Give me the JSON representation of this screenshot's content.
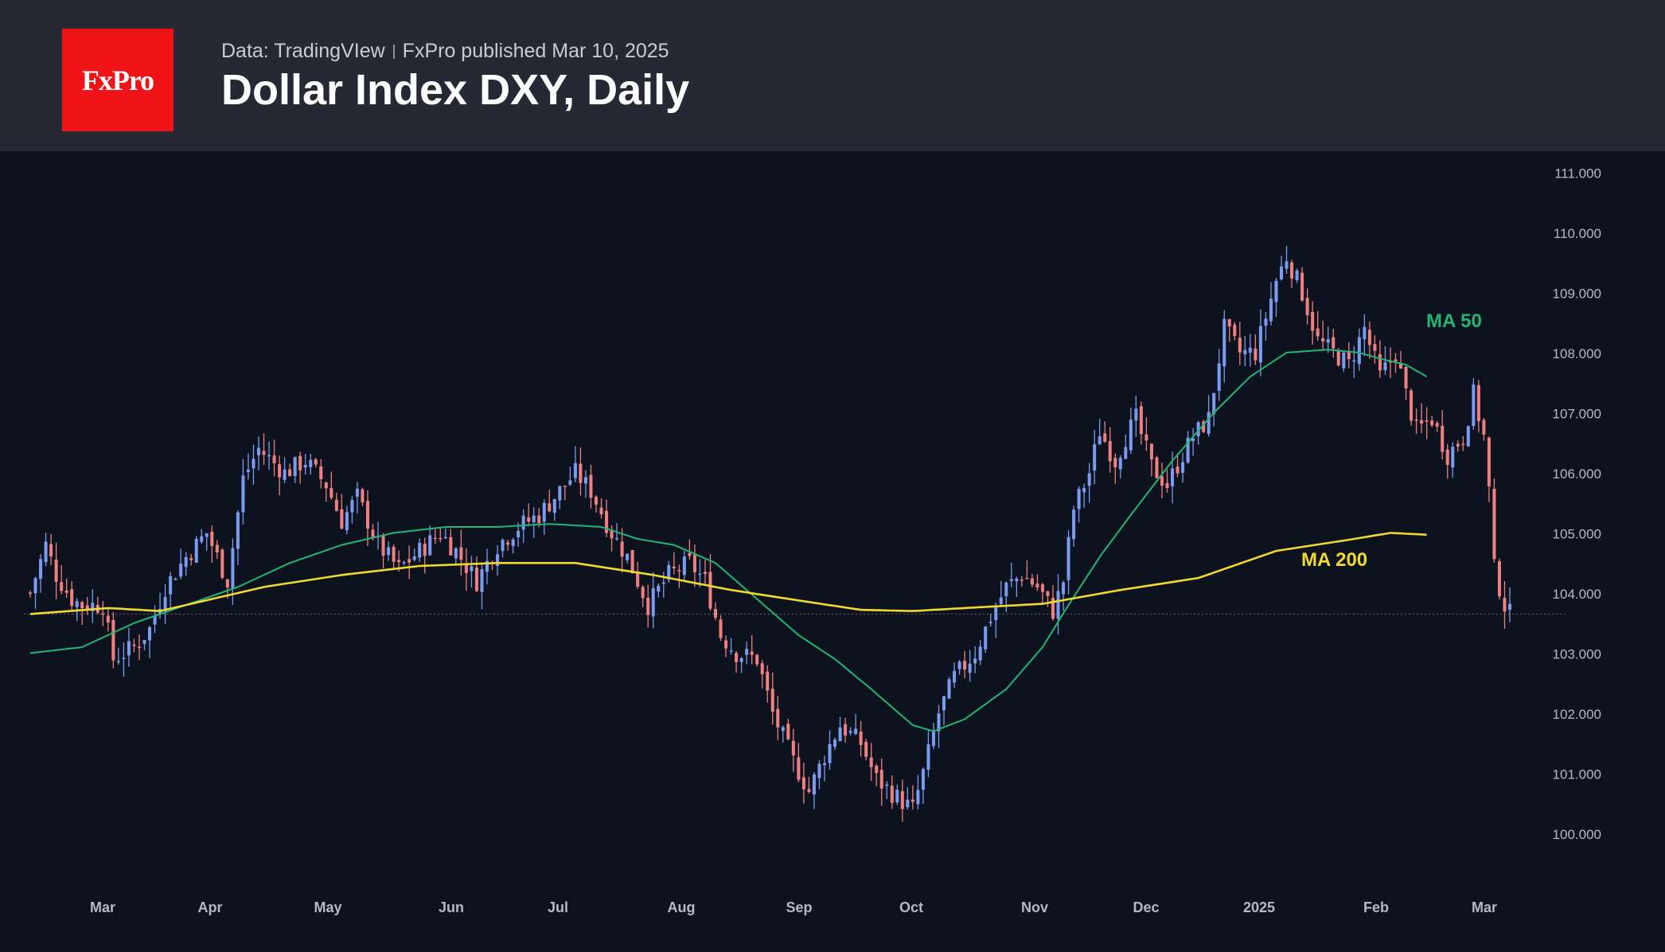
{
  "header": {
    "logo_text": "FxPro",
    "source": "Data: TradingVIew",
    "published": "FxPro published Mar 10, 2025",
    "title": "Dollar Index DXY, Daily"
  },
  "colors": {
    "background": "#0d121f",
    "header_bg": "#262933",
    "logo_bg": "#f01418",
    "up_candle": "#7a9cf0",
    "down_candle": "#f08080",
    "ma50": "#22b573",
    "ma200": "#f1d931",
    "axis_text": "#b5b9c2"
  },
  "chart_data": {
    "type": "candlestick",
    "title": "Dollar Index DXY, Daily",
    "y_ticks": [
      "111.000",
      "110.000",
      "109.000",
      "108.000",
      "107.000",
      "106.000",
      "105.000",
      "104.000",
      "103.000",
      "102.000",
      "101.000",
      "100.000"
    ],
    "x_ticks": [
      "Mar",
      "Apr",
      "May",
      "Jun",
      "Jul",
      "Aug",
      "Sep",
      "Oct",
      "Nov",
      "Dec",
      "2025",
      "Feb",
      "Mar"
    ],
    "ylim": [
      99.5,
      111.3
    ],
    "last_price_line": 103.65,
    "candle_anchors": [
      [
        0,
        104.0
      ],
      [
        3,
        104.8
      ],
      [
        5,
        104.3
      ],
      [
        8,
        103.9
      ],
      [
        10,
        103.8
      ],
      [
        14,
        103.8
      ],
      [
        16,
        102.9
      ],
      [
        20,
        103.1
      ],
      [
        23,
        103.4
      ],
      [
        26,
        104.1
      ],
      [
        30,
        104.6
      ],
      [
        34,
        105.0
      ],
      [
        38,
        104.2
      ],
      [
        41,
        105.9
      ],
      [
        44,
        106.4
      ],
      [
        49,
        106.0
      ],
      [
        53,
        106.2
      ],
      [
        57,
        105.8
      ],
      [
        60,
        105.2
      ],
      [
        63,
        105.6
      ],
      [
        67,
        104.8
      ],
      [
        71,
        104.4
      ],
      [
        75,
        104.7
      ],
      [
        79,
        105.0
      ],
      [
        82,
        104.7
      ],
      [
        86,
        104.2
      ],
      [
        90,
        104.8
      ],
      [
        94,
        105.1
      ],
      [
        98,
        105.3
      ],
      [
        102,
        105.7
      ],
      [
        105,
        106.0
      ],
      [
        108,
        105.7
      ],
      [
        112,
        105.0
      ],
      [
        115,
        104.6
      ],
      [
        119,
        103.8
      ],
      [
        123,
        104.3
      ],
      [
        127,
        104.5
      ],
      [
        130,
        104.2
      ],
      [
        133,
        103.3
      ],
      [
        136,
        103.0
      ],
      [
        140,
        102.9
      ],
      [
        143,
        102.0
      ],
      [
        147,
        101.2
      ],
      [
        150,
        100.7
      ],
      [
        153,
        101.3
      ],
      [
        156,
        101.8
      ],
      [
        160,
        101.5
      ],
      [
        163,
        100.9
      ],
      [
        167,
        100.6
      ],
      [
        170,
        100.4
      ],
      [
        172,
        101.0
      ],
      [
        175,
        102.0
      ],
      [
        178,
        102.6
      ],
      [
        182,
        103.0
      ],
      [
        185,
        103.6
      ],
      [
        188,
        104.1
      ],
      [
        191,
        104.3
      ],
      [
        194,
        104.1
      ],
      [
        197,
        103.7
      ],
      [
        199,
        104.2
      ],
      [
        201,
        105.4
      ],
      [
        204,
        106.0
      ],
      [
        206,
        106.7
      ],
      [
        209,
        106.2
      ],
      [
        211,
        106.6
      ],
      [
        213,
        106.9
      ],
      [
        216,
        106.1
      ],
      [
        219,
        105.8
      ],
      [
        222,
        106.3
      ],
      [
        224,
        106.6
      ],
      [
        227,
        106.9
      ],
      [
        230,
        108.4
      ],
      [
        233,
        108.0
      ],
      [
        236,
        108.0
      ],
      [
        238,
        108.6
      ],
      [
        240,
        109.2
      ],
      [
        242,
        109.6
      ],
      [
        245,
        109.0
      ],
      [
        248,
        108.2
      ],
      [
        251,
        108.0
      ],
      [
        254,
        107.8
      ],
      [
        257,
        108.4
      ],
      [
        260,
        107.6
      ],
      [
        263,
        108.0
      ],
      [
        265,
        107.3
      ],
      [
        267,
        106.7
      ],
      [
        270,
        106.9
      ],
      [
        273,
        106.3
      ],
      [
        276,
        106.6
      ],
      [
        278,
        107.3
      ],
      [
        280,
        106.6
      ],
      [
        281,
        105.7
      ],
      [
        282,
        104.4
      ],
      [
        283,
        104.1
      ],
      [
        284,
        103.8
      ],
      [
        285,
        103.65
      ]
    ],
    "candle_count": 286,
    "series": [
      {
        "name": "MA 50",
        "anchors": [
          [
            0,
            103.0
          ],
          [
            10,
            103.1
          ],
          [
            20,
            103.5
          ],
          [
            30,
            103.8
          ],
          [
            40,
            104.1
          ],
          [
            50,
            104.5
          ],
          [
            60,
            104.8
          ],
          [
            70,
            105.0
          ],
          [
            80,
            105.1
          ],
          [
            90,
            105.1
          ],
          [
            100,
            105.15
          ],
          [
            110,
            105.1
          ],
          [
            117,
            104.9
          ],
          [
            124,
            104.8
          ],
          [
            132,
            104.5
          ],
          [
            140,
            103.9
          ],
          [
            148,
            103.3
          ],
          [
            155,
            102.9
          ],
          [
            162,
            102.4
          ],
          [
            170,
            101.8
          ],
          [
            174,
            101.7
          ],
          [
            180,
            101.9
          ],
          [
            188,
            102.4
          ],
          [
            195,
            103.1
          ],
          [
            200,
            103.8
          ],
          [
            206,
            104.6
          ],
          [
            212,
            105.3
          ],
          [
            220,
            106.2
          ],
          [
            228,
            107.0
          ],
          [
            235,
            107.6
          ],
          [
            242,
            108.0
          ],
          [
            250,
            108.05
          ],
          [
            256,
            108.0
          ],
          [
            260,
            107.9
          ],
          [
            265,
            107.8
          ],
          [
            269,
            107.6
          ]
        ],
        "label": "MA 50"
      },
      {
        "name": "MA 200",
        "anchors": [
          [
            0,
            103.65
          ],
          [
            15,
            103.75
          ],
          [
            25,
            103.7
          ],
          [
            35,
            103.9
          ],
          [
            45,
            104.1
          ],
          [
            60,
            104.3
          ],
          [
            75,
            104.45
          ],
          [
            90,
            104.5
          ],
          [
            105,
            104.5
          ],
          [
            120,
            104.3
          ],
          [
            135,
            104.05
          ],
          [
            150,
            103.85
          ],
          [
            160,
            103.72
          ],
          [
            170,
            103.7
          ],
          [
            180,
            103.75
          ],
          [
            195,
            103.82
          ],
          [
            210,
            104.05
          ],
          [
            225,
            104.25
          ],
          [
            240,
            104.7
          ],
          [
            255,
            104.9
          ],
          [
            262,
            105.0
          ],
          [
            269,
            104.97
          ]
        ],
        "label": "MA 200"
      }
    ]
  }
}
